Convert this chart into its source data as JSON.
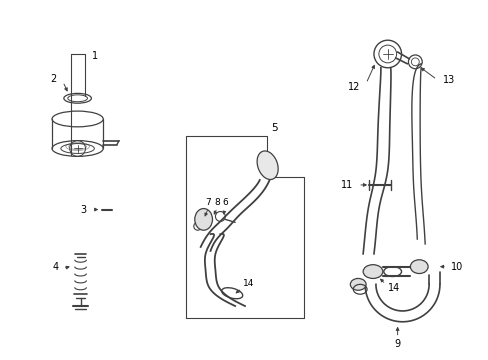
{
  "bg_color": "#ffffff",
  "line_color": "#404040",
  "text_color": "#000000",
  "fig_width": 4.89,
  "fig_height": 3.6,
  "dpi": 100,
  "lw": 0.9
}
